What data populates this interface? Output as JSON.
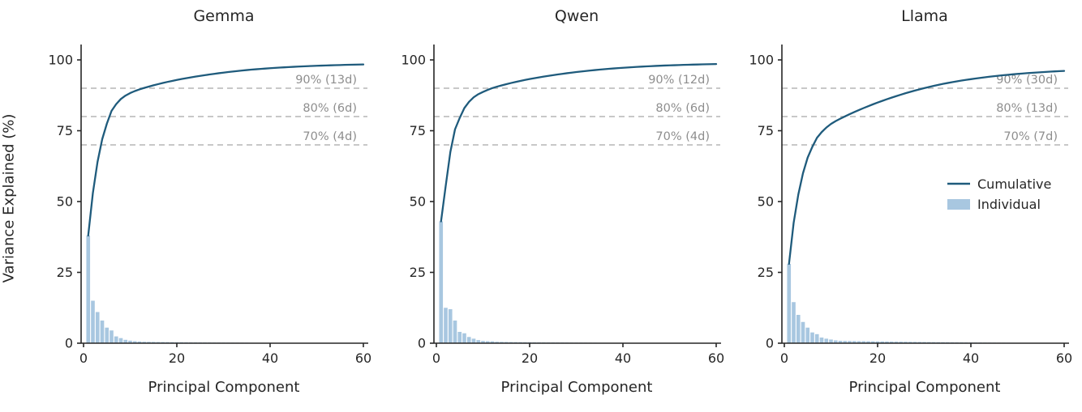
{
  "figure": {
    "y_axis_label": "Variance Explained (%)",
    "x_axis_label": "Principal Component",
    "y_ticks": [
      0,
      25,
      50,
      75,
      100
    ],
    "x_ticks": [
      0,
      20,
      40,
      60
    ],
    "ylim": [
      0,
      105
    ],
    "xlim": [
      0,
      61
    ],
    "grid": "off",
    "legend": {
      "position": "right-panel-middle-right",
      "items": [
        {
          "label": "Cumulative",
          "type": "line"
        },
        {
          "label": "Individual",
          "type": "patch"
        }
      ]
    },
    "colors": {
      "cumulative_line": "#1f5b7c",
      "individual_bar": "#a8c7e0",
      "threshold_line": "#b5b5b5",
      "annotation_text": "#8e8e8e",
      "axis_text": "#262626",
      "spine": "#262626",
      "background": "#ffffff"
    }
  },
  "chart_data": [
    {
      "type": "bar+line",
      "title": "Gemma",
      "x_description": "Principal Component index 1..60",
      "thresholds": [
        {
          "value": 90,
          "label": "90% (13d)"
        },
        {
          "value": 80,
          "label": "80% (6d)"
        },
        {
          "value": 70,
          "label": "70% (4d)"
        }
      ],
      "series": [
        {
          "name": "Individual",
          "values": [
            38,
            15,
            11,
            8,
            5.5,
            4.5,
            2.4,
            1.8,
            1.2,
            0.9,
            0.7,
            0.6,
            0.5,
            0.48,
            0.45,
            0.42,
            0.4,
            0.38,
            0.36,
            0.34,
            0.32,
            0.3,
            0.28,
            0.27,
            0.26,
            0.25,
            0.24,
            0.23,
            0.22,
            0.21,
            0.2,
            0.19,
            0.18,
            0.17,
            0.16,
            0.15,
            0.14,
            0.13,
            0.12,
            0.12,
            0.11,
            0.1,
            0.1,
            0.09,
            0.09,
            0.08,
            0.08,
            0.07,
            0.07,
            0.06,
            0.06,
            0.06,
            0.05,
            0.05,
            0.05,
            0.05,
            0.04,
            0.04,
            0.04,
            0.04
          ]
        },
        {
          "name": "Cumulative",
          "values": [
            38,
            53,
            64,
            72,
            77.5,
            82,
            84.4,
            86.2,
            87.4,
            88.3,
            89,
            89.6,
            90.1,
            90.58,
            91.03,
            91.45,
            91.85,
            92.23,
            92.59,
            92.93,
            93.25,
            93.55,
            93.83,
            94.1,
            94.36,
            94.61,
            94.85,
            95.08,
            95.3,
            95.51,
            95.71,
            95.9,
            96.08,
            96.25,
            96.41,
            96.56,
            96.7,
            96.83,
            96.95,
            97.07,
            97.18,
            97.28,
            97.38,
            97.47,
            97.56,
            97.64,
            97.72,
            97.79,
            97.86,
            97.92,
            97.98,
            98.04,
            98.09,
            98.14,
            98.19,
            98.24,
            98.28,
            98.32,
            98.36,
            98.4
          ]
        }
      ]
    },
    {
      "type": "bar+line",
      "title": "Qwen",
      "x_description": "Principal Component index 1..60",
      "thresholds": [
        {
          "value": 90,
          "label": "90% (12d)"
        },
        {
          "value": 80,
          "label": "80% (6d)"
        },
        {
          "value": 70,
          "label": "70% (4d)"
        }
      ],
      "series": [
        {
          "name": "Individual",
          "values": [
            43,
            12.5,
            12,
            8,
            4,
            3.5,
            2.2,
            1.6,
            1.1,
            0.8,
            0.7,
            0.65,
            0.5,
            0.46,
            0.43,
            0.4,
            0.38,
            0.36,
            0.34,
            0.32,
            0.3,
            0.29,
            0.27,
            0.26,
            0.25,
            0.24,
            0.23,
            0.22,
            0.21,
            0.2,
            0.19,
            0.18,
            0.17,
            0.16,
            0.15,
            0.15,
            0.14,
            0.13,
            0.12,
            0.12,
            0.11,
            0.1,
            0.1,
            0.09,
            0.09,
            0.08,
            0.08,
            0.07,
            0.07,
            0.06,
            0.06,
            0.06,
            0.05,
            0.05,
            0.05,
            0.04,
            0.04,
            0.04,
            0.04,
            0.03
          ]
        },
        {
          "name": "Cumulative",
          "values": [
            43,
            55.5,
            67.5,
            75.5,
            79.5,
            83,
            85.2,
            86.8,
            87.9,
            88.7,
            89.4,
            90.05,
            90.55,
            91.01,
            91.44,
            91.84,
            92.22,
            92.58,
            92.92,
            93.24,
            93.54,
            93.83,
            94.1,
            94.36,
            94.61,
            94.85,
            95.08,
            95.3,
            95.51,
            95.71,
            95.9,
            96.08,
            96.25,
            96.41,
            96.56,
            96.71,
            96.85,
            96.98,
            97.1,
            97.22,
            97.33,
            97.43,
            97.53,
            97.62,
            97.71,
            97.79,
            97.87,
            97.94,
            98.01,
            98.07,
            98.13,
            98.19,
            98.24,
            98.29,
            98.34,
            98.38,
            98.42,
            98.46,
            98.5,
            98.53
          ]
        }
      ]
    },
    {
      "type": "bar+line",
      "title": "Llama",
      "x_description": "Principal Component index 1..60",
      "thresholds": [
        {
          "value": 90,
          "label": "90% (30d)"
        },
        {
          "value": 80,
          "label": "80% (13d)"
        },
        {
          "value": 70,
          "label": "70% (7d)"
        }
      ],
      "has_legend": true,
      "series": [
        {
          "name": "Individual",
          "values": [
            28,
            14.5,
            10,
            7.5,
            5.5,
            3.8,
            3.2,
            2,
            1.6,
            1.3,
            1,
            0.85,
            0.8,
            0.78,
            0.75,
            0.72,
            0.7,
            0.67,
            0.65,
            0.62,
            0.6,
            0.58,
            0.56,
            0.54,
            0.52,
            0.5,
            0.48,
            0.46,
            0.44,
            0.42,
            0.4,
            0.38,
            0.36,
            0.34,
            0.32,
            0.3,
            0.29,
            0.27,
            0.26,
            0.24,
            0.23,
            0.22,
            0.21,
            0.2,
            0.19,
            0.18,
            0.17,
            0.16,
            0.15,
            0.14,
            0.13,
            0.13,
            0.12,
            0.11,
            0.11,
            0.1,
            0.1,
            0.09,
            0.09,
            0.08
          ]
        },
        {
          "name": "Cumulative",
          "values": [
            28,
            42.5,
            52.5,
            60,
            65.5,
            69.3,
            72.5,
            74.5,
            76.1,
            77.4,
            78.4,
            79.25,
            80.05,
            80.83,
            81.58,
            82.3,
            83,
            83.67,
            84.32,
            84.94,
            85.54,
            86.12,
            86.68,
            87.22,
            87.74,
            88.24,
            88.72,
            89.18,
            89.62,
            90.04,
            90.44,
            90.82,
            91.18,
            91.52,
            91.84,
            92.14,
            92.43,
            92.7,
            92.96,
            93.2,
            93.43,
            93.65,
            93.86,
            94.06,
            94.25,
            94.43,
            94.6,
            94.76,
            94.91,
            95.05,
            95.18,
            95.31,
            95.43,
            95.54,
            95.65,
            95.75,
            95.85,
            95.94,
            96.03,
            96.11
          ]
        }
      ]
    }
  ]
}
